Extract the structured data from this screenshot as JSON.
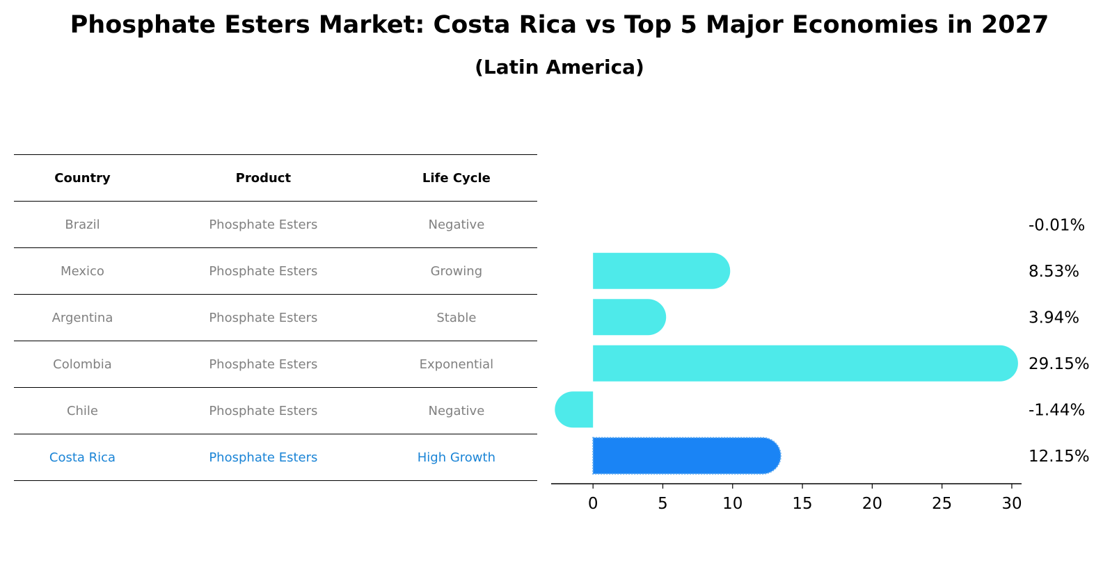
{
  "title": "Phosphate Esters Market: Costa Rica vs Top 5 Major Economies in 2027",
  "subtitle": "(Latin America)",
  "table": {
    "headers": [
      "Country",
      "Product",
      "Life Cycle"
    ],
    "rows": [
      {
        "country": "Brazil",
        "product": "Phosphate Esters",
        "life_cycle": "Negative",
        "highlight": false
      },
      {
        "country": "Mexico",
        "product": "Phosphate Esters",
        "life_cycle": "Growing",
        "highlight": false
      },
      {
        "country": "Argentina",
        "product": "Phosphate Esters",
        "life_cycle": "Stable",
        "highlight": false
      },
      {
        "country": "Colombia",
        "product": "Phosphate Esters",
        "life_cycle": "Exponential",
        "highlight": false
      },
      {
        "country": "Chile",
        "product": "Phosphate Esters",
        "life_cycle": "Negative",
        "highlight": false
      },
      {
        "country": "Costa Rica",
        "product": "Phosphate Esters",
        "life_cycle": "High Growth",
        "highlight": true
      }
    ]
  },
  "colors": {
    "bar": "#4eeaea",
    "highlight_bar": "#1a84f5",
    "highlight_text": "#1a84d6",
    "muted_text": "#808080"
  },
  "chart_data": {
    "type": "bar",
    "orientation": "horizontal",
    "categories": [
      "Brazil",
      "Mexico",
      "Argentina",
      "Colombia",
      "Chile",
      "Costa Rica"
    ],
    "values": [
      -0.01,
      8.53,
      3.94,
      29.15,
      -1.44,
      12.15
    ],
    "value_labels": [
      "-0.01%",
      "8.53%",
      "3.94%",
      "29.15%",
      "-1.44%",
      "12.15%"
    ],
    "highlight": "Costa Rica",
    "xlim": [
      -3,
      30.7
    ],
    "xticks": [
      0,
      5,
      10,
      15,
      20,
      25,
      30
    ],
    "xlabel": "",
    "ylabel": ""
  }
}
